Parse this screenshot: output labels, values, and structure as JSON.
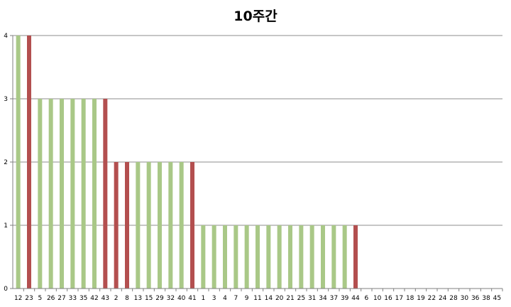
{
  "chart_data": {
    "type": "bar",
    "title": "10주간",
    "xlabel": "",
    "ylabel": "",
    "ylim": [
      0,
      4
    ],
    "yticks": [
      "0",
      "1",
      "2",
      "3",
      "4"
    ],
    "grid": true,
    "legend": "none",
    "categories": [
      "12",
      "23",
      "5",
      "26",
      "27",
      "33",
      "35",
      "42",
      "43",
      "2",
      "8",
      "13",
      "15",
      "29",
      "32",
      "40",
      "41",
      "1",
      "3",
      "4",
      "7",
      "9",
      "11",
      "14",
      "20",
      "21",
      "25",
      "31",
      "34",
      "37",
      "39",
      "44",
      "6",
      "10",
      "16",
      "17",
      "18",
      "19",
      "22",
      "24",
      "28",
      "30",
      "36",
      "38",
      "45"
    ],
    "values": [
      4,
      4,
      3,
      3,
      3,
      3,
      3,
      3,
      3,
      2,
      2,
      2,
      2,
      2,
      2,
      2,
      2,
      1,
      1,
      1,
      1,
      1,
      1,
      1,
      1,
      1,
      1,
      1,
      1,
      1,
      1,
      1,
      0,
      0,
      0,
      0,
      0,
      0,
      0,
      0,
      0,
      0,
      0,
      0,
      0
    ],
    "highlighted": [
      false,
      true,
      false,
      false,
      false,
      false,
      false,
      false,
      true,
      true,
      true,
      false,
      false,
      false,
      false,
      false,
      true,
      false,
      false,
      false,
      false,
      false,
      false,
      false,
      false,
      false,
      false,
      false,
      false,
      false,
      false,
      true,
      false,
      false,
      false,
      false,
      false,
      false,
      false,
      false,
      false,
      false,
      false,
      false,
      false
    ],
    "colors": {
      "normal": "#a9c887",
      "highlight": "#b34f4f",
      "grid": "#8c8c8c",
      "axis": "#7f7f7f"
    }
  }
}
